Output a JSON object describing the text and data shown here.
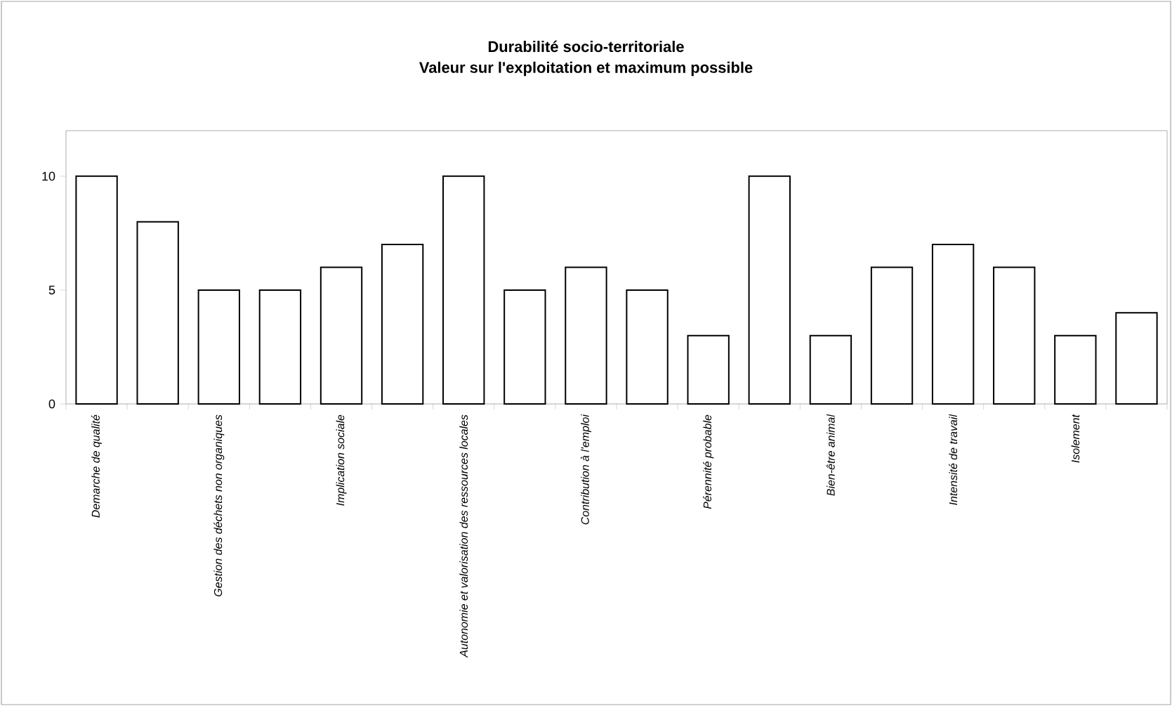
{
  "chart_data": {
    "type": "bar",
    "title": "Durabilité socio-territoriale",
    "subtitle": "Valeur sur l'exploitation et maximum possible",
    "categories": [
      "Demarche de qualité",
      null,
      "Gestion des déchets non organiques",
      null,
      "Implication sociale",
      null,
      "Autonomie et valorisation des ressources locales",
      null,
      "Contribution à l'emploi",
      null,
      "Pérennité probable",
      null,
      "Bien-être animal",
      null,
      "Intensité de travail",
      null,
      "Isolement",
      null
    ],
    "values": [
      10,
      8,
      5,
      5,
      6,
      7,
      10,
      5,
      6,
      5,
      3,
      10,
      3,
      6,
      7,
      6,
      3,
      4
    ],
    "color": "#ffffff",
    "ylim": [
      0,
      12
    ],
    "yticks": [
      0,
      5,
      10
    ]
  }
}
